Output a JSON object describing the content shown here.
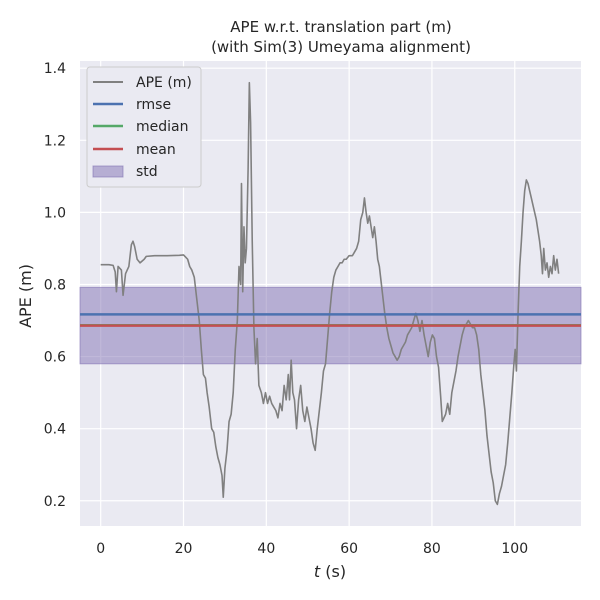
{
  "chart_data": {
    "type": "line",
    "title": [
      "APE w.r.t. translation part (m)",
      "(with Sim(3) Umeyama alignment)"
    ],
    "xlabel_italic": "t",
    "xlabel_unit": " (s)",
    "ylabel": "APE (m)",
    "xlim": [
      -5,
      116
    ],
    "ylim": [
      0.13,
      1.42
    ],
    "x_ticks": [
      0,
      20,
      40,
      60,
      80,
      100
    ],
    "y_ticks": [
      0.2,
      0.4,
      0.6,
      0.8,
      1.0,
      1.2,
      1.4
    ],
    "y_tick_labels": [
      "0.2",
      "0.4",
      "0.6",
      "0.8",
      "1.0",
      "1.2",
      "1.4"
    ],
    "grid": true,
    "legend_position": "top-left",
    "legend": [
      "APE (m)",
      "rmse",
      "median",
      "mean",
      "std"
    ],
    "colors": {
      "background": "#eaeaf2",
      "grid": "#ffffff",
      "ape": "#808080",
      "rmse": "#4c72b0",
      "median": "#55a868",
      "mean": "#c44e52",
      "std": "#8172b3"
    },
    "stats": {
      "rmse": 0.717,
      "median": 0.687,
      "mean": 0.686,
      "std_band": [
        0.58,
        0.792
      ]
    },
    "series": [
      {
        "name": "APE (m)",
        "points": [
          [
            0,
            0.855
          ],
          [
            1,
            0.855
          ],
          [
            2,
            0.855
          ],
          [
            3,
            0.853
          ],
          [
            3.5,
            0.835
          ],
          [
            3.8,
            0.78
          ],
          [
            4.2,
            0.85
          ],
          [
            5,
            0.84
          ],
          [
            5.4,
            0.77
          ],
          [
            6,
            0.83
          ],
          [
            6.8,
            0.85
          ],
          [
            7.4,
            0.91
          ],
          [
            7.8,
            0.92
          ],
          [
            8.2,
            0.905
          ],
          [
            8.8,
            0.87
          ],
          [
            9.5,
            0.86
          ],
          [
            10.5,
            0.87
          ],
          [
            11,
            0.878
          ],
          [
            13,
            0.88
          ],
          [
            16,
            0.88
          ],
          [
            19,
            0.881
          ],
          [
            20,
            0.882
          ],
          [
            20.5,
            0.876
          ],
          [
            21,
            0.87
          ],
          [
            21.5,
            0.85
          ],
          [
            22,
            0.84
          ],
          [
            22.6,
            0.82
          ],
          [
            23.2,
            0.76
          ],
          [
            23.8,
            0.7
          ],
          [
            24.3,
            0.62
          ],
          [
            24.8,
            0.55
          ],
          [
            25.3,
            0.54
          ],
          [
            25.7,
            0.5
          ],
          [
            26.2,
            0.46
          ],
          [
            26.8,
            0.4
          ],
          [
            27.3,
            0.39
          ],
          [
            27.8,
            0.35
          ],
          [
            28.3,
            0.32
          ],
          [
            28.8,
            0.3
          ],
          [
            29.3,
            0.27
          ],
          [
            29.6,
            0.21
          ],
          [
            30,
            0.29
          ],
          [
            30.5,
            0.34
          ],
          [
            31,
            0.42
          ],
          [
            31.5,
            0.44
          ],
          [
            32,
            0.5
          ],
          [
            32.5,
            0.62
          ],
          [
            33,
            0.7
          ],
          [
            33.4,
            0.85
          ],
          [
            33.8,
            0.8
          ],
          [
            34,
            1.08
          ],
          [
            34.3,
            0.78
          ],
          [
            34.6,
            0.96
          ],
          [
            34.9,
            0.86
          ],
          [
            35.2,
            0.9
          ],
          [
            35.6,
            1.12
          ],
          [
            35.9,
            1.36
          ],
          [
            36.2,
            1.25
          ],
          [
            36.6,
            0.92
          ],
          [
            37,
            0.68
          ],
          [
            37.4,
            0.58
          ],
          [
            37.8,
            0.65
          ],
          [
            38.2,
            0.52
          ],
          [
            38.8,
            0.5
          ],
          [
            39.3,
            0.47
          ],
          [
            39.8,
            0.5
          ],
          [
            40.3,
            0.47
          ],
          [
            40.8,
            0.49
          ],
          [
            41.3,
            0.47
          ],
          [
            41.8,
            0.46
          ],
          [
            42.3,
            0.45
          ],
          [
            42.8,
            0.43
          ],
          [
            43.3,
            0.47
          ],
          [
            43.8,
            0.45
          ],
          [
            44.3,
            0.52
          ],
          [
            44.8,
            0.48
          ],
          [
            45.3,
            0.55
          ],
          [
            45.6,
            0.48
          ],
          [
            46,
            0.59
          ],
          [
            46.4,
            0.5
          ],
          [
            46.8,
            0.48
          ],
          [
            47.3,
            0.4
          ],
          [
            47.8,
            0.48
          ],
          [
            48.3,
            0.52
          ],
          [
            48.8,
            0.45
          ],
          [
            49.3,
            0.42
          ],
          [
            49.8,
            0.46
          ],
          [
            50.3,
            0.43
          ],
          [
            50.8,
            0.4
          ],
          [
            51.3,
            0.36
          ],
          [
            51.8,
            0.34
          ],
          [
            52.3,
            0.4
          ],
          [
            52.8,
            0.45
          ],
          [
            53.3,
            0.5
          ],
          [
            53.8,
            0.56
          ],
          [
            54.3,
            0.58
          ],
          [
            54.8,
            0.65
          ],
          [
            55.3,
            0.72
          ],
          [
            55.8,
            0.78
          ],
          [
            56.3,
            0.82
          ],
          [
            56.8,
            0.84
          ],
          [
            57.3,
            0.85
          ],
          [
            57.8,
            0.86
          ],
          [
            58.3,
            0.86
          ],
          [
            58.8,
            0.87
          ],
          [
            59.3,
            0.87
          ],
          [
            60,
            0.88
          ],
          [
            60.8,
            0.88
          ],
          [
            61.3,
            0.89
          ],
          [
            61.8,
            0.9
          ],
          [
            62.3,
            0.92
          ],
          [
            62.8,
            0.98
          ],
          [
            63.3,
            1.0
          ],
          [
            63.7,
            1.04
          ],
          [
            64.1,
            1.0
          ],
          [
            64.5,
            0.97
          ],
          [
            64.9,
            0.99
          ],
          [
            65.3,
            0.96
          ],
          [
            65.7,
            0.93
          ],
          [
            66.1,
            0.96
          ],
          [
            66.5,
            0.92
          ],
          [
            66.9,
            0.87
          ],
          [
            67.3,
            0.85
          ],
          [
            67.7,
            0.81
          ],
          [
            68.1,
            0.77
          ],
          [
            68.6,
            0.72
          ],
          [
            69.1,
            0.68
          ],
          [
            69.6,
            0.65
          ],
          [
            70.1,
            0.63
          ],
          [
            70.6,
            0.61
          ],
          [
            71.1,
            0.6
          ],
          [
            71.6,
            0.59
          ],
          [
            72.1,
            0.6
          ],
          [
            72.6,
            0.62
          ],
          [
            73.1,
            0.63
          ],
          [
            73.6,
            0.64
          ],
          [
            74.1,
            0.66
          ],
          [
            74.6,
            0.67
          ],
          [
            75.1,
            0.68
          ],
          [
            75.6,
            0.7
          ],
          [
            76.1,
            0.72
          ],
          [
            76.6,
            0.7
          ],
          [
            77.1,
            0.67
          ],
          [
            77.6,
            0.7
          ],
          [
            78.1,
            0.66
          ],
          [
            78.6,
            0.63
          ],
          [
            79.1,
            0.6
          ],
          [
            79.6,
            0.64
          ],
          [
            80.1,
            0.66
          ],
          [
            80.6,
            0.65
          ],
          [
            81.1,
            0.6
          ],
          [
            81.6,
            0.57
          ],
          [
            82.1,
            0.49
          ],
          [
            82.5,
            0.42
          ],
          [
            82.9,
            0.43
          ],
          [
            83.3,
            0.44
          ],
          [
            83.8,
            0.47
          ],
          [
            84.3,
            0.44
          ],
          [
            84.8,
            0.5
          ],
          [
            85.3,
            0.53
          ],
          [
            85.8,
            0.56
          ],
          [
            86.3,
            0.6
          ],
          [
            86.8,
            0.63
          ],
          [
            87.3,
            0.66
          ],
          [
            87.8,
            0.68
          ],
          [
            88.3,
            0.69
          ],
          [
            88.8,
            0.7
          ],
          [
            89.3,
            0.69
          ],
          [
            89.8,
            0.68
          ],
          [
            90.3,
            0.68
          ],
          [
            90.8,
            0.66
          ],
          [
            91.3,
            0.62
          ],
          [
            91.8,
            0.55
          ],
          [
            92.3,
            0.5
          ],
          [
            92.8,
            0.45
          ],
          [
            93.3,
            0.38
          ],
          [
            93.8,
            0.33
          ],
          [
            94.3,
            0.28
          ],
          [
            94.8,
            0.25
          ],
          [
            95.3,
            0.2
          ],
          [
            95.8,
            0.19
          ],
          [
            96.3,
            0.22
          ],
          [
            96.8,
            0.24
          ],
          [
            97.3,
            0.27
          ],
          [
            97.8,
            0.3
          ],
          [
            98.3,
            0.36
          ],
          [
            98.8,
            0.43
          ],
          [
            99.3,
            0.5
          ],
          [
            99.8,
            0.58
          ],
          [
            100.1,
            0.62
          ],
          [
            100.4,
            0.56
          ],
          [
            100.8,
            0.72
          ],
          [
            101.2,
            0.85
          ],
          [
            101.6,
            0.92
          ],
          [
            102,
            1.0
          ],
          [
            102.4,
            1.06
          ],
          [
            102.8,
            1.09
          ],
          [
            103.2,
            1.08
          ],
          [
            103.6,
            1.06
          ],
          [
            104,
            1.04
          ],
          [
            104.4,
            1.02
          ],
          [
            104.8,
            1.0
          ],
          [
            105.2,
            0.98
          ],
          [
            105.6,
            0.95
          ],
          [
            106,
            0.92
          ],
          [
            106.4,
            0.88
          ],
          [
            106.7,
            0.83
          ],
          [
            107,
            0.9
          ],
          [
            107.4,
            0.84
          ],
          [
            107.8,
            0.86
          ],
          [
            108.2,
            0.82
          ],
          [
            108.6,
            0.85
          ],
          [
            109,
            0.83
          ],
          [
            109.4,
            0.88
          ],
          [
            109.8,
            0.84
          ],
          [
            110.2,
            0.87
          ],
          [
            110.6,
            0.83
          ]
        ]
      }
    ]
  }
}
